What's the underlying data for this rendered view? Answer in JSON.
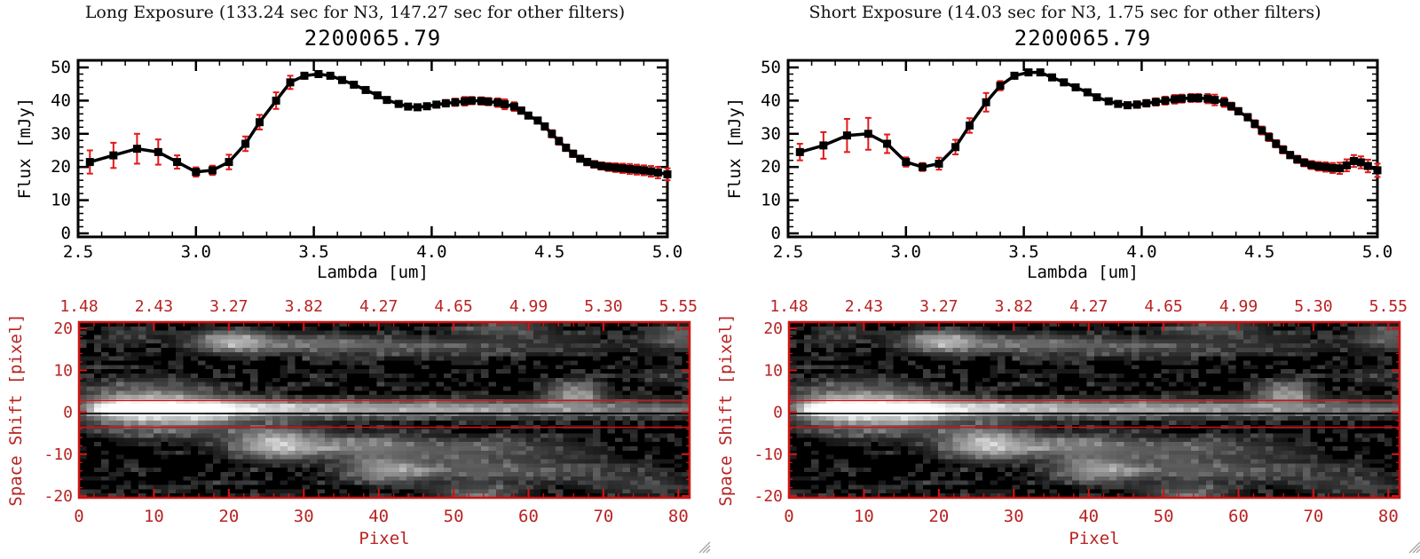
{
  "colors": {
    "background": "#ffffff",
    "plot_black": "#000000",
    "errorbar_red": "#e21818",
    "annotation_red": "#b92222",
    "frame_red": "#cc1414",
    "grip_gray": "#a8a8a8"
  },
  "panels": [
    {
      "id": "long",
      "suptitle": "Long Exposure (133.24 sec for N3, 147.27 sec for other filters)",
      "plot_title": "2200065.79"
    },
    {
      "id": "short",
      "suptitle": "Short Exposure (14.03 sec for N3, 1.75 sec for other filters)",
      "plot_title": "2200065.79"
    }
  ],
  "chart_data": [
    {
      "type": "line",
      "panel": "long",
      "title": "2200065.79",
      "xlabel": "Lambda [um]",
      "ylabel": "Flux [mJy]",
      "xlim": [
        2.5,
        5.0
      ],
      "ylim": [
        0,
        50
      ],
      "xticks": [
        2.5,
        3.0,
        3.5,
        4.0,
        4.5,
        5.0
      ],
      "xtick_labels": [
        "2.5",
        "3.0",
        "3.5",
        "4.0",
        "4.5",
        "5.0"
      ],
      "yticks": [
        0,
        10,
        20,
        30,
        40,
        50
      ],
      "ytick_labels": [
        "0",
        "10",
        "20",
        "30",
        "40",
        "50"
      ],
      "grid": false,
      "marker": "filled-square",
      "x": [
        2.55,
        2.65,
        2.75,
        2.84,
        2.92,
        3.0,
        3.07,
        3.14,
        3.21,
        3.27,
        3.34,
        3.4,
        3.46,
        3.52,
        3.57,
        3.62,
        3.67,
        3.72,
        3.77,
        3.81,
        3.86,
        3.9,
        3.94,
        3.98,
        4.02,
        4.06,
        4.1,
        4.14,
        4.17,
        4.21,
        4.24,
        4.28,
        4.31,
        4.35,
        4.38,
        4.41,
        4.45,
        4.48,
        4.51,
        4.54,
        4.57,
        4.6,
        4.63,
        4.66,
        4.69,
        4.72,
        4.75,
        4.78,
        4.81,
        4.84,
        4.87,
        4.9,
        4.93,
        4.96,
        5.0
      ],
      "series": [
        {
          "name": "flux_mJy",
          "values": [
            21.5,
            23.5,
            25.5,
            24.5,
            21.5,
            18.5,
            19.0,
            21.5,
            27.0,
            33.5,
            40.0,
            45.5,
            47.5,
            48.0,
            47.5,
            46.2,
            44.8,
            43.2,
            41.6,
            40.2,
            39.0,
            38.2,
            38.0,
            38.3,
            38.8,
            39.2,
            39.5,
            39.8,
            40.0,
            39.9,
            39.7,
            39.4,
            38.9,
            38.2,
            37.0,
            35.5,
            34.0,
            32.2,
            30.0,
            27.8,
            25.8,
            24.0,
            22.5,
            21.5,
            20.8,
            20.3,
            20.0,
            19.8,
            19.6,
            19.4,
            19.2,
            19.0,
            18.7,
            18.3,
            17.8
          ]
        },
        {
          "name": "flux_err_mJy",
          "values": [
            3.5,
            3.8,
            4.5,
            3.8,
            2.0,
            1.4,
            1.4,
            2.2,
            2.2,
            2.2,
            2.5,
            2.0,
            0.9,
            0.9,
            0.9,
            0.8,
            0.8,
            0.8,
            0.8,
            0.8,
            0.8,
            0.8,
            0.9,
            0.9,
            0.9,
            1.0,
            1.1,
            1.3,
            1.1,
            1.1,
            1.1,
            1.3,
            1.5,
            1.3,
            1.0,
            0.9,
            0.9,
            1.0,
            1.1,
            1.1,
            1.0,
            1.0,
            0.9,
            1.0,
            1.0,
            1.1,
            1.2,
            1.3,
            1.4,
            1.5,
            1.5,
            1.5,
            1.6,
            1.7,
            1.8
          ]
        }
      ]
    },
    {
      "type": "line",
      "panel": "short",
      "title": "2200065.79",
      "xlabel": "Lambda [um]",
      "ylabel": "Flux [mJy]",
      "xlim": [
        2.5,
        5.0
      ],
      "ylim": [
        0,
        50
      ],
      "xticks": [
        2.5,
        3.0,
        3.5,
        4.0,
        4.5,
        5.0
      ],
      "xtick_labels": [
        "2.5",
        "3.0",
        "3.5",
        "4.0",
        "4.5",
        "5.0"
      ],
      "yticks": [
        0,
        10,
        20,
        30,
        40,
        50
      ],
      "ytick_labels": [
        "0",
        "10",
        "20",
        "30",
        "40",
        "50"
      ],
      "grid": false,
      "marker": "filled-square",
      "x": [
        2.55,
        2.65,
        2.75,
        2.84,
        2.92,
        3.0,
        3.07,
        3.14,
        3.21,
        3.27,
        3.34,
        3.4,
        3.46,
        3.52,
        3.57,
        3.62,
        3.67,
        3.72,
        3.77,
        3.81,
        3.86,
        3.9,
        3.94,
        3.98,
        4.02,
        4.06,
        4.1,
        4.14,
        4.17,
        4.21,
        4.24,
        4.28,
        4.31,
        4.35,
        4.38,
        4.41,
        4.45,
        4.48,
        4.51,
        4.54,
        4.57,
        4.6,
        4.63,
        4.66,
        4.69,
        4.72,
        4.75,
        4.78,
        4.81,
        4.84,
        4.87,
        4.9,
        4.93,
        4.96,
        5.0
      ],
      "series": [
        {
          "name": "flux_mJy",
          "values": [
            24.5,
            26.5,
            29.5,
            30.0,
            27.0,
            21.5,
            20.0,
            21.0,
            26.0,
            32.5,
            39.5,
            44.5,
            47.5,
            48.5,
            48.5,
            47.0,
            45.5,
            44.0,
            42.5,
            41.0,
            39.8,
            39.0,
            38.6,
            38.8,
            39.2,
            39.6,
            40.0,
            40.4,
            40.6,
            40.8,
            40.8,
            40.6,
            40.2,
            39.5,
            38.3,
            36.8,
            35.0,
            33.0,
            31.0,
            29.0,
            27.0,
            25.2,
            23.6,
            22.3,
            21.3,
            20.6,
            20.2,
            20.0,
            19.7,
            19.6,
            20.5,
            21.8,
            21.4,
            20.3,
            19.0
          ]
        },
        {
          "name": "flux_err_mJy",
          "values": [
            2.5,
            4.0,
            5.0,
            4.8,
            2.8,
            1.4,
            1.2,
            1.8,
            2.2,
            2.2,
            2.8,
            1.4,
            0.9,
            0.9,
            0.9,
            0.9,
            0.8,
            0.8,
            0.8,
            0.8,
            0.8,
            0.9,
            0.9,
            1.0,
            1.0,
            1.1,
            1.2,
            1.3,
            1.2,
            1.2,
            1.2,
            1.4,
            1.6,
            1.4,
            1.1,
            1.0,
            1.0,
            1.1,
            1.2,
            1.2,
            1.1,
            1.1,
            1.0,
            1.1,
            1.1,
            1.2,
            1.3,
            1.4,
            1.5,
            1.7,
            1.8,
            1.8,
            1.8,
            1.9,
            2.0
          ]
        }
      ]
    },
    {
      "type": "heatmap",
      "panels": [
        "long",
        "short"
      ],
      "xlabel": "Pixel",
      "ylabel": "Space Shift [pixel]",
      "xlim": [
        0,
        81.5
      ],
      "ylim": [
        -20.4,
        21.5
      ],
      "bottom_ticks": [
        0,
        10,
        20,
        30,
        40,
        50,
        60,
        70,
        80
      ],
      "bottom_tick_labels": [
        "0",
        "10",
        "20",
        "30",
        "40",
        "50",
        "60",
        "70",
        "80"
      ],
      "top_ticks": [
        0,
        10,
        20,
        30,
        40,
        50,
        60,
        70,
        80
      ],
      "top_tick_labels": [
        "1.48",
        "2.43",
        "3.27",
        "3.82",
        "4.27",
        "4.65",
        "4.99",
        "5.30",
        "5.55"
      ],
      "left_ticks": [
        20,
        10,
        0,
        -10,
        -20
      ],
      "left_tick_labels": [
        "20",
        "10",
        "0",
        "-10",
        "-20"
      ],
      "overlay_lines": {
        "red_aperture": [
          2.8,
          -3.6
        ],
        "black_center": -0.3
      },
      "image_model": {
        "columns": 82,
        "rows": 41,
        "trace": {
          "y0": 0.3,
          "sigma": 1.4
        },
        "trace_profile": [
          [
            0,
            0.18
          ],
          [
            2,
            0.55
          ],
          [
            4,
            0.88
          ],
          [
            6,
            1.0
          ],
          [
            16,
            1.0
          ],
          [
            22,
            0.8
          ],
          [
            30,
            0.66
          ],
          [
            40,
            0.58
          ],
          [
            50,
            0.52
          ],
          [
            58,
            0.46
          ],
          [
            66,
            0.39
          ],
          [
            74,
            0.33
          ],
          [
            81,
            0.28
          ]
        ],
        "blobs": [
          [
            9,
            1.0,
            6.5,
            3.5,
            0.5
          ],
          [
            14,
            -3.5,
            7,
            2.2,
            0.18
          ],
          [
            20,
            16,
            3.5,
            1.7,
            0.6
          ],
          [
            31,
            15.5,
            6,
            1.5,
            0.3
          ],
          [
            45,
            14.8,
            8,
            1.6,
            0.18
          ],
          [
            62,
            15,
            9,
            1.8,
            0.1
          ],
          [
            26,
            -8,
            4,
            2.3,
            0.65
          ],
          [
            37,
            -8.5,
            6,
            1.9,
            0.32
          ],
          [
            50,
            -9,
            8,
            1.8,
            0.18
          ],
          [
            60,
            -9.5,
            8,
            1.8,
            0.1
          ],
          [
            41,
            -14,
            4,
            1.9,
            0.5
          ],
          [
            53,
            -14,
            7,
            1.7,
            0.22
          ],
          [
            66,
            -14.5,
            8,
            1.8,
            0.13
          ],
          [
            66,
            4,
            2.6,
            1.9,
            0.45
          ],
          [
            80,
            17,
            3,
            1.8,
            0.28
          ],
          [
            57,
            19.5,
            4,
            1.6,
            0.22
          ],
          [
            53,
            -19.5,
            4,
            1.6,
            0.26
          ],
          [
            75,
            -18,
            5,
            1.8,
            0.12
          ],
          [
            6,
            17,
            3,
            1.5,
            0.12
          ],
          [
            78,
            8,
            3,
            1.5,
            0.1
          ]
        ],
        "noise": {
          "salt1": 101,
          "salt2": 202,
          "t1": 0.62,
          "g1": 0.42,
          "t2": 0.72,
          "g2": 0.3
        }
      }
    }
  ]
}
